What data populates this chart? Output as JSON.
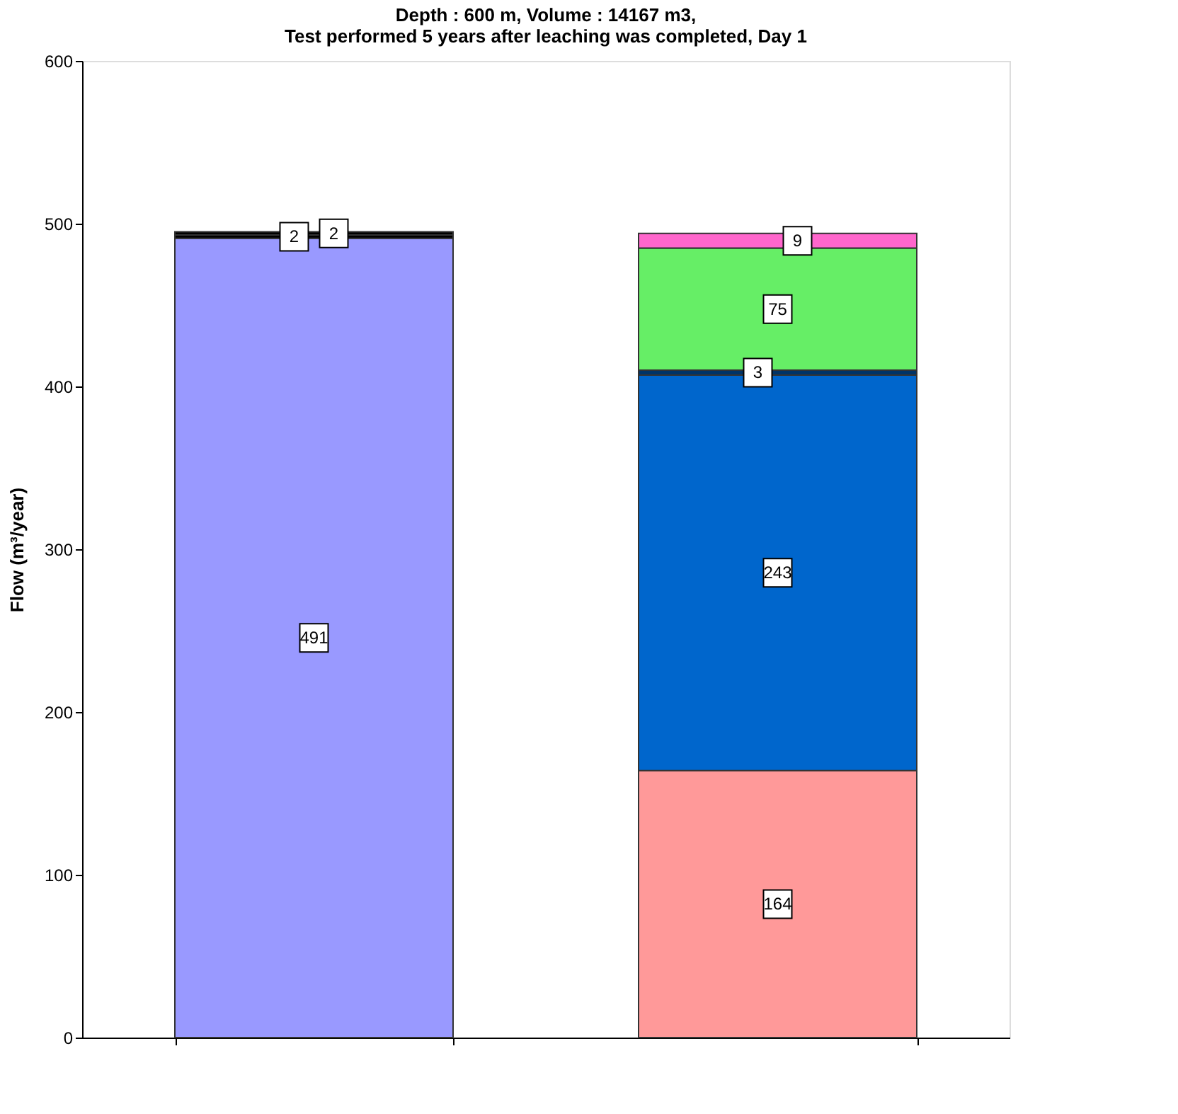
{
  "chart_data": {
    "type": "bar",
    "stacked": true,
    "title": "Depth : 600 m, Volume : 14167 m3,\nTest performed 5 years after leaching was completed, Day 1",
    "ylabel": "Flow (m³/year)",
    "categories": [
      null,
      null
    ],
    "series": [
      {
        "color": "#9999ff",
        "values": [
          491,
          null
        ]
      },
      {
        "color": "#000000",
        "values": [
          2,
          null
        ]
      },
      {
        "color": "#000000",
        "values": [
          2,
          null
        ]
      },
      {
        "color": "#ff9999",
        "values": [
          null,
          164
        ]
      },
      {
        "color": "#0066cc",
        "values": [
          null,
          243
        ]
      },
      {
        "color": "#003366",
        "values": [
          null,
          3
        ]
      },
      {
        "color": "#66ee66",
        "values": [
          null,
          75
        ]
      },
      {
        "color": "#ff66cc",
        "values": [
          null,
          9
        ]
      }
    ],
    "ylim": [
      0,
      600
    ],
    "yticks": [
      0,
      100,
      200,
      300,
      400,
      500,
      600
    ],
    "data_labels": true,
    "grid": false,
    "legend": false
  }
}
